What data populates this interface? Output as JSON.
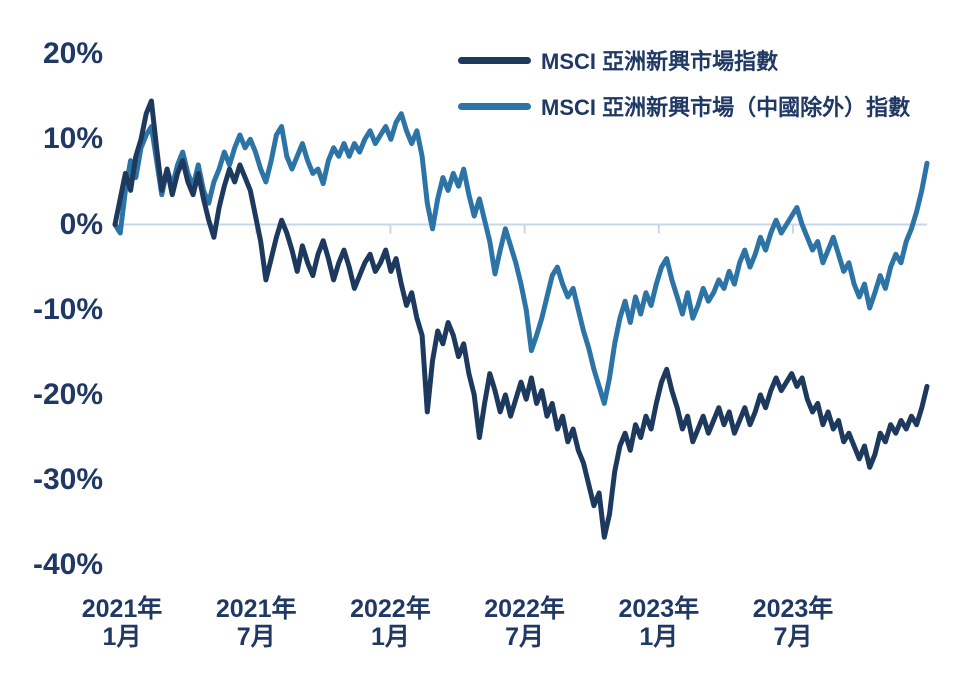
{
  "chart_data": {
    "type": "line",
    "title": "",
    "legend_position": "top-center",
    "grid": "zero-axis-line-only",
    "axis_color": "#c6d7ec",
    "text_color": "#1f3864",
    "x_axis": {
      "ticks": [
        {
          "year": "2021年",
          "month": "1月"
        },
        {
          "year": "2021年",
          "month": "7月"
        },
        {
          "year": "2022年",
          "month": "1月"
        },
        {
          "year": "2022年",
          "month": "7月"
        },
        {
          "year": "2023年",
          "month": "1月"
        },
        {
          "year": "2023年",
          "month": "7月"
        }
      ],
      "interval": "6 months, weekly data points"
    },
    "y_axis": {
      "unit": "%",
      "ylim": [
        -40,
        20
      ],
      "ticks": [
        {
          "label": "20%",
          "value": 20
        },
        {
          "label": "10%",
          "value": 10
        },
        {
          "label": "0%",
          "value": 0
        },
        {
          "label": "-10%",
          "value": -10
        },
        {
          "label": "-20%",
          "value": -20
        },
        {
          "label": "-30%",
          "value": -30
        },
        {
          "label": "-40%",
          "value": -40
        }
      ]
    },
    "series": [
      {
        "name": "MSCI 亞洲新興市場指數",
        "color": "#1d3a5e",
        "values": [
          0,
          3,
          6,
          4,
          8,
          10,
          13,
          14.5,
          9,
          4,
          6.5,
          3.5,
          6,
          7.5,
          5,
          3.5,
          6,
          3,
          0.5,
          -1.5,
          2,
          4.5,
          6.5,
          5,
          7,
          5.5,
          4,
          1,
          -2,
          -6.5,
          -4,
          -1.5,
          0.5,
          -1,
          -3,
          -5.5,
          -2.5,
          -4.5,
          -6,
          -3.5,
          -1.9,
          -4,
          -6.5,
          -4.5,
          -3,
          -5,
          -7.5,
          -6,
          -4.5,
          -3.5,
          -5.5,
          -4.5,
          -3,
          -5.5,
          -4,
          -7,
          -9.5,
          -8,
          -11,
          -13,
          -22,
          -16,
          -12.5,
          -14,
          -11.5,
          -13,
          -15.5,
          -14,
          -17.5,
          -20,
          -25,
          -21,
          -17.5,
          -19.5,
          -22,
          -20,
          -22.5,
          -20.5,
          -18.5,
          -20.5,
          -18,
          -21,
          -19.5,
          -22.5,
          -21,
          -24,
          -22.5,
          -25.5,
          -24,
          -26.5,
          -28,
          -30.5,
          -33,
          -31.5,
          -36.7,
          -34,
          -29,
          -26,
          -24.5,
          -26.5,
          -23.5,
          -25,
          -22.5,
          -24,
          -21,
          -18.5,
          -17,
          -19.5,
          -21.5,
          -24,
          -22.5,
          -25.5,
          -24,
          -22.5,
          -24.5,
          -23,
          -21.5,
          -23.5,
          -22,
          -24.5,
          -23,
          -21.5,
          -23.5,
          -22,
          -20,
          -21.5,
          -19.5,
          -18,
          -19.5,
          -18.5,
          -17.5,
          -19,
          -18,
          -20.5,
          -22,
          -21,
          -23.5,
          -22,
          -24,
          -23,
          -25.5,
          -24.5,
          -26,
          -27.5,
          -26,
          -28.5,
          -27,
          -24.5,
          -25.5,
          -23.5,
          -24.5,
          -23,
          -24,
          -22.5,
          -23.5,
          -21.5,
          -19
        ]
      },
      {
        "name": "MSCI 亞洲新興市場（中國除外）指數",
        "color": "#2d74a6",
        "values": [
          0,
          -1,
          4,
          7.5,
          5.5,
          9,
          10.5,
          11.5,
          7.5,
          3.5,
          6.5,
          4.5,
          7,
          8.5,
          6,
          4.5,
          7,
          4,
          2.5,
          5,
          6.5,
          8.5,
          7,
          9,
          10.5,
          9,
          10,
          8.5,
          6.5,
          5,
          7.5,
          10.5,
          11.5,
          8,
          6.5,
          8,
          9.5,
          7.5,
          6,
          6.5,
          4.8,
          7.5,
          9,
          8,
          9.5,
          8,
          9.5,
          8.5,
          10,
          11,
          9.5,
          10.5,
          11.5,
          10,
          12,
          13,
          11,
          9.5,
          11,
          8,
          2.5,
          -0.5,
          3,
          5.5,
          4,
          6,
          4.5,
          6.5,
          3.5,
          1,
          3,
          0.5,
          -2,
          -5.8,
          -3,
          -0.5,
          -2.5,
          -4.5,
          -7,
          -10,
          -14.8,
          -13,
          -11,
          -8.5,
          -6,
          -5,
          -7,
          -8.5,
          -7.5,
          -10,
          -12.5,
          -14.5,
          -17,
          -19,
          -21,
          -18,
          -14,
          -11,
          -9,
          -11.5,
          -8.5,
          -10.5,
          -8,
          -9.5,
          -7,
          -5,
          -4,
          -6.5,
          -8.5,
          -10.5,
          -8,
          -11,
          -9.5,
          -7.5,
          -9,
          -8,
          -6.5,
          -7.5,
          -5.5,
          -7,
          -4.5,
          -3,
          -5,
          -3.5,
          -1.5,
          -3,
          -1,
          0.5,
          -1,
          0,
          1,
          2,
          0,
          -1.5,
          -3,
          -2,
          -4.5,
          -3,
          -1.5,
          -3.5,
          -5.5,
          -4.5,
          -7,
          -8.5,
          -7,
          -9.8,
          -8,
          -6,
          -7.5,
          -5,
          -3.5,
          -4.5,
          -2,
          -0.5,
          1.5,
          4,
          7.2
        ]
      }
    ]
  }
}
